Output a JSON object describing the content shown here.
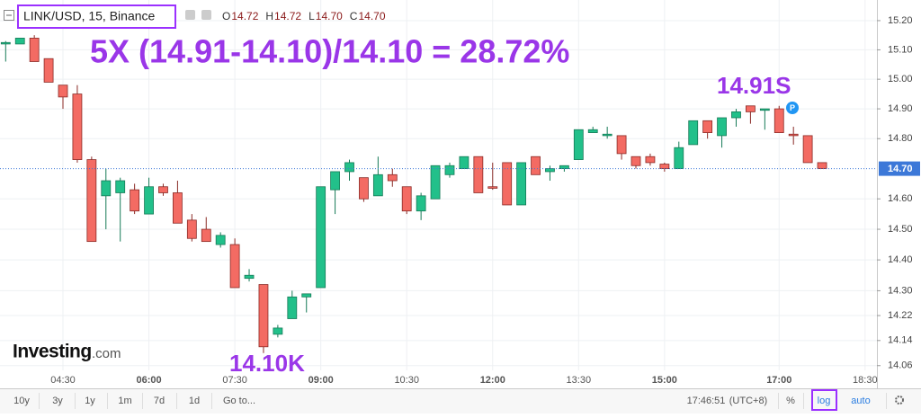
{
  "chart_data": {
    "type": "candlestick",
    "title": "LINK/USD, 15, Binance",
    "ohlc_legend": [
      {
        "key": "O",
        "text": "14.72"
      },
      {
        "key": "H",
        "text": "14.72"
      },
      {
        "key": "L",
        "text": "14.70"
      },
      {
        "key": "C",
        "text": "14.70"
      }
    ],
    "annotations": {
      "headline": "5X (14.91-14.10)/14.10 = 28.72%",
      "high_label": "14.91S",
      "low_label": "14.10K",
      "marker": "P"
    },
    "watermark": {
      "brand": "Investing",
      "suffix": ".com"
    },
    "log_scale": true,
    "grid": true,
    "up_color": "#22c08a",
    "down_color": "#f36b63",
    "x": [
      3.5,
      3.75,
      4,
      4.25,
      4.5,
      4.75,
      5,
      5.25,
      5.5,
      5.75,
      6,
      6.25,
      6.5,
      6.75,
      7,
      7.25,
      7.5,
      7.75,
      8,
      8.25,
      8.5,
      8.75,
      9,
      9.25,
      9.5,
      9.75,
      10,
      10.25,
      10.5,
      10.75,
      11,
      11.25,
      11.5,
      11.75,
      12,
      12.25,
      12.5,
      12.75,
      13,
      13.25,
      13.5,
      13.75,
      14,
      14.25,
      14.5,
      14.75,
      15,
      15.25,
      15.5,
      15.75,
      16,
      16.25,
      16.5,
      16.75,
      17,
      17.25,
      17.5,
      17.75
    ],
    "open": [
      15.12,
      15.12,
      15.14,
      15.07,
      14.98,
      14.95,
      14.73,
      14.61,
      14.62,
      14.63,
      14.55,
      14.64,
      14.62,
      14.53,
      14.5,
      14.45,
      14.45,
      14.34,
      14.32,
      14.16,
      14.21,
      14.28,
      14.31,
      14.63,
      14.69,
      14.67,
      14.61,
      14.68,
      14.64,
      14.56,
      14.6,
      14.68,
      14.7,
      14.74,
      14.64,
      14.72,
      14.58,
      14.74,
      14.69,
      14.7,
      14.73,
      14.82,
      14.81,
      14.81,
      14.74,
      14.74,
      14.715,
      14.7,
      14.78,
      14.86,
      14.81,
      14.87,
      14.91,
      14.895,
      14.9,
      14.815,
      14.81,
      14.72
    ],
    "high": [
      15.13,
      15.14,
      15.15,
      15.07,
      14.98,
      14.98,
      14.74,
      14.7,
      14.67,
      14.65,
      14.67,
      14.65,
      14.66,
      14.55,
      14.54,
      14.49,
      14.47,
      14.37,
      14.32,
      14.19,
      14.3,
      14.29,
      14.64,
      14.69,
      14.73,
      14.67,
      14.74,
      14.7,
      14.64,
      14.62,
      14.71,
      14.72,
      14.74,
      14.74,
      14.72,
      14.72,
      14.72,
      14.74,
      14.71,
      14.71,
      14.83,
      14.84,
      14.84,
      14.81,
      14.74,
      14.75,
      14.72,
      14.79,
      14.86,
      14.86,
      14.87,
      14.9,
      14.91,
      14.9,
      14.91,
      14.84,
      14.81,
      14.72
    ],
    "low": [
      15.06,
      15.12,
      15.06,
      14.99,
      14.9,
      14.72,
      14.46,
      14.5,
      14.46,
      14.55,
      14.55,
      14.61,
      14.52,
      14.46,
      14.46,
      14.44,
      14.31,
      14.33,
      14.1,
      14.15,
      14.21,
      14.23,
      14.31,
      14.55,
      14.66,
      14.59,
      14.61,
      14.64,
      14.55,
      14.53,
      14.6,
      14.67,
      14.7,
      14.62,
      14.63,
      14.58,
      14.58,
      14.68,
      14.66,
      14.69,
      14.73,
      14.82,
      14.8,
      14.73,
      14.7,
      14.71,
      14.69,
      14.7,
      14.78,
      14.8,
      14.77,
      14.84,
      14.85,
      14.83,
      14.82,
      14.78,
      14.72,
      14.7
    ],
    "close": [
      15.125,
      15.14,
      15.06,
      14.99,
      14.94,
      14.73,
      14.46,
      14.66,
      14.66,
      14.56,
      14.64,
      14.62,
      14.52,
      14.47,
      14.46,
      14.48,
      14.31,
      14.35,
      14.12,
      14.18,
      14.28,
      14.29,
      14.64,
      14.69,
      14.72,
      14.6,
      14.68,
      14.66,
      14.56,
      14.61,
      14.71,
      14.71,
      14.74,
      14.62,
      14.635,
      14.58,
      14.72,
      14.68,
      14.7,
      14.71,
      14.83,
      14.83,
      14.815,
      14.75,
      14.71,
      14.72,
      14.7,
      14.77,
      14.86,
      14.82,
      14.87,
      14.89,
      14.89,
      14.9,
      14.82,
      14.81,
      14.72,
      14.7
    ],
    "xlim": [
      3.401,
      18.707
    ],
    "xticks": [
      {
        "value": 4.5,
        "label": "04:30"
      },
      {
        "value": 6,
        "label": "06:00"
      },
      {
        "value": 7.5,
        "label": "07:30"
      },
      {
        "value": 9,
        "label": "09:00"
      },
      {
        "value": 10.5,
        "label": "10:30"
      },
      {
        "value": 12,
        "label": "12:00"
      },
      {
        "value": 13.5,
        "label": "13:30"
      },
      {
        "value": 15,
        "label": "15:00"
      },
      {
        "value": 17,
        "label": "17:00"
      },
      {
        "value": 18.5,
        "label": "18:30"
      }
    ],
    "ylim": [
      14.045,
      15.271
    ],
    "yticks": [
      {
        "value": 15.2,
        "label": "15.20"
      },
      {
        "value": 15.1,
        "label": "15.10"
      },
      {
        "value": 15.0,
        "label": "15.00"
      },
      {
        "value": 14.9,
        "label": "14.90"
      },
      {
        "value": 14.8,
        "label": "14.80"
      },
      {
        "value": 14.6,
        "label": "14.60"
      },
      {
        "value": 14.5,
        "label": "14.50"
      },
      {
        "value": 14.4,
        "label": "14.40"
      },
      {
        "value": 14.3,
        "label": "14.30"
      },
      14.22,
      14.14,
      14.06
    ],
    "last_price": {
      "value": 14.7,
      "label": "14.70"
    }
  },
  "toolbar": {
    "ranges": [
      "10y",
      "3y",
      "1y",
      "1m",
      "7d",
      "1d"
    ],
    "goto": "Go to...",
    "clock": "17:46:51",
    "timezone": "(UTC+8)",
    "percent": "%",
    "log": "log",
    "auto": "auto"
  }
}
